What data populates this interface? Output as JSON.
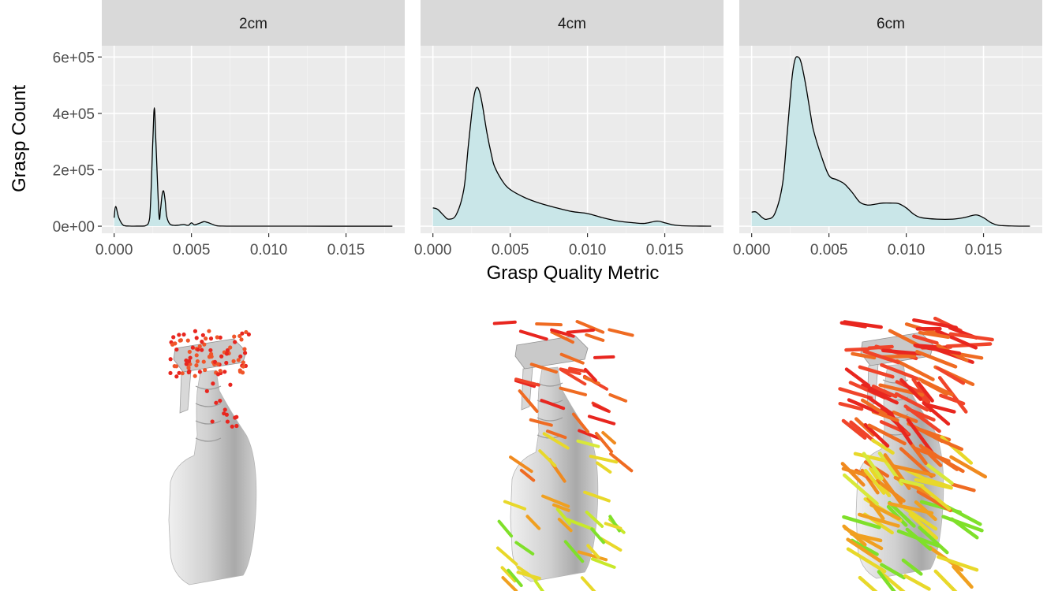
{
  "chart_data": {
    "type": "area",
    "xlabel": "Grasp Quality Metric",
    "ylabel": "Grasp Count",
    "xlim": [
      -0.0008,
      0.0188
    ],
    "ylim": [
      -25000,
      640000
    ],
    "x_ticks": [
      0.0,
      0.005,
      0.01,
      0.015
    ],
    "x_tick_labels": [
      "0.000",
      "0.005",
      "0.010",
      "0.015"
    ],
    "y_ticks": [
      0,
      200000,
      400000,
      600000
    ],
    "y_tick_labels": [
      "0e+00",
      "2e+05",
      "4e+05",
      "6e+05"
    ],
    "grid": true,
    "fill_color": "#c9e6e8",
    "line_color": "#000000",
    "panel_bg": "#ebebeb",
    "strip_bg": "#d9d9d9",
    "facets": [
      {
        "label": "2cm",
        "x": [
          0.0,
          0.0001,
          0.0003,
          0.0006,
          0.001,
          0.0015,
          0.002,
          0.0023,
          0.0025,
          0.0026,
          0.0027,
          0.0029,
          0.003,
          0.0031,
          0.0032,
          0.0033,
          0.0034,
          0.0036,
          0.0039,
          0.0042,
          0.0045,
          0.0048,
          0.005,
          0.0052,
          0.0055,
          0.0058,
          0.006,
          0.0063,
          0.0066,
          0.007,
          0.008,
          0.01,
          0.012,
          0.014,
          0.016,
          0.018
        ],
        "y": [
          30000,
          70000,
          30000,
          3000,
          500,
          300,
          1000,
          30000,
          300000,
          420000,
          300000,
          40000,
          60000,
          110000,
          125000,
          90000,
          35000,
          8000,
          3000,
          4000,
          6000,
          3000,
          12000,
          5000,
          10000,
          16000,
          14000,
          8000,
          2000,
          500,
          200,
          100,
          50,
          30,
          20,
          10
        ]
      },
      {
        "label": "4cm",
        "x": [
          0.0,
          0.0003,
          0.0007,
          0.001,
          0.0015,
          0.002,
          0.0023,
          0.0026,
          0.0028,
          0.003,
          0.0032,
          0.0035,
          0.0038,
          0.004,
          0.0045,
          0.005,
          0.006,
          0.007,
          0.008,
          0.009,
          0.01,
          0.011,
          0.012,
          0.013,
          0.0137,
          0.0145,
          0.015,
          0.0155,
          0.016,
          0.017,
          0.018
        ],
        "y": [
          65000,
          60000,
          38000,
          25000,
          40000,
          130000,
          290000,
          440000,
          490000,
          480000,
          430000,
          330000,
          250000,
          210000,
          160000,
          130000,
          100000,
          80000,
          65000,
          52000,
          45000,
          30000,
          18000,
          12000,
          10000,
          18000,
          12000,
          5000,
          2000,
          500,
          100
        ]
      },
      {
        "label": "6cm",
        "x": [
          0.0,
          0.0003,
          0.0007,
          0.001,
          0.0015,
          0.002,
          0.0023,
          0.0026,
          0.0028,
          0.003,
          0.0032,
          0.0035,
          0.0038,
          0.004,
          0.0045,
          0.005,
          0.0055,
          0.006,
          0.0065,
          0.007,
          0.0075,
          0.008,
          0.0085,
          0.009,
          0.0095,
          0.01,
          0.0105,
          0.011,
          0.012,
          0.013,
          0.0137,
          0.0145,
          0.015,
          0.0155,
          0.016,
          0.017,
          0.018
        ],
        "y": [
          50000,
          50000,
          30000,
          25000,
          45000,
          150000,
          330000,
          520000,
          590000,
          600000,
          580000,
          500000,
          400000,
          340000,
          250000,
          180000,
          165000,
          150000,
          120000,
          85000,
          75000,
          78000,
          82000,
          82000,
          80000,
          65000,
          42000,
          30000,
          25000,
          25000,
          30000,
          40000,
          30000,
          12000,
          3000,
          500,
          100
        ]
      }
    ]
  }
}
